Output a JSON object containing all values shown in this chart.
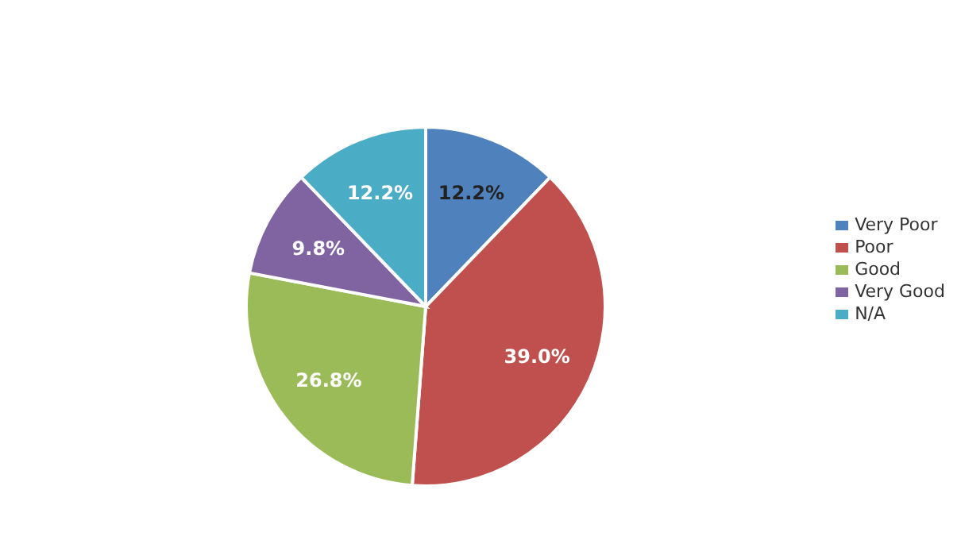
{
  "chart_data": {
    "type": "pie",
    "categories": [
      "Very Poor",
      "Poor",
      "Good",
      "Very Good",
      "N/A"
    ],
    "values": [
      12.2,
      39.0,
      26.8,
      9.8,
      12.2
    ],
    "value_labels": [
      "12.2%",
      "39.0%",
      "26.8%",
      "9.8%",
      "12.2%"
    ],
    "colors": [
      "#4f81bd",
      "#c0504d",
      "#9bbb59",
      "#8064a2",
      "#4bacc6"
    ],
    "legend": "right"
  }
}
